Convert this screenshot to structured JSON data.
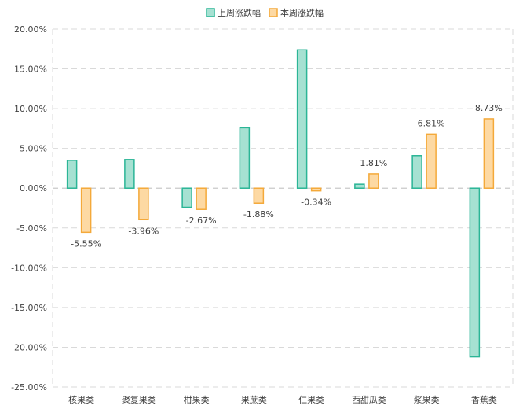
{
  "chart_data": {
    "type": "bar",
    "categories": [
      "核果类",
      "聚复果类",
      "柑果类",
      "果蔗类",
      "仁果类",
      "西甜瓜类",
      "浆果类",
      "香蕉类"
    ],
    "series": [
      {
        "name": "上周涨跌幅",
        "values": [
          3.5,
          3.6,
          -2.4,
          7.6,
          17.4,
          0.5,
          4.1,
          -21.2
        ],
        "color": "#2bb596",
        "fill": "#a6e1d2"
      },
      {
        "name": "本周涨跌幅",
        "values": [
          -5.55,
          -3.96,
          -2.67,
          -1.88,
          -0.34,
          1.81,
          6.81,
          8.73
        ],
        "data_labels": [
          "-5.55%",
          "-3.96%",
          "-2.67%",
          "-1.88%",
          "-0.34%",
          "1.81%",
          "6.81%",
          "8.73%"
        ],
        "color": "#f4a93a",
        "fill": "#fdd9a3"
      }
    ],
    "ylim": [
      -25,
      20
    ],
    "yticks": [
      20,
      15,
      10,
      5,
      0,
      -5,
      -10,
      -15,
      -20,
      -25
    ],
    "ytick_labels": [
      "20.00%",
      "15.00%",
      "10.00%",
      "5.00%",
      "0.00%",
      "-5.00%",
      "-10.00%",
      "-15.00%",
      "-20.00%",
      "-25.00%"
    ],
    "grid": true,
    "legend_position": "top-center",
    "title": "",
    "xlabel": "",
    "ylabel": ""
  }
}
